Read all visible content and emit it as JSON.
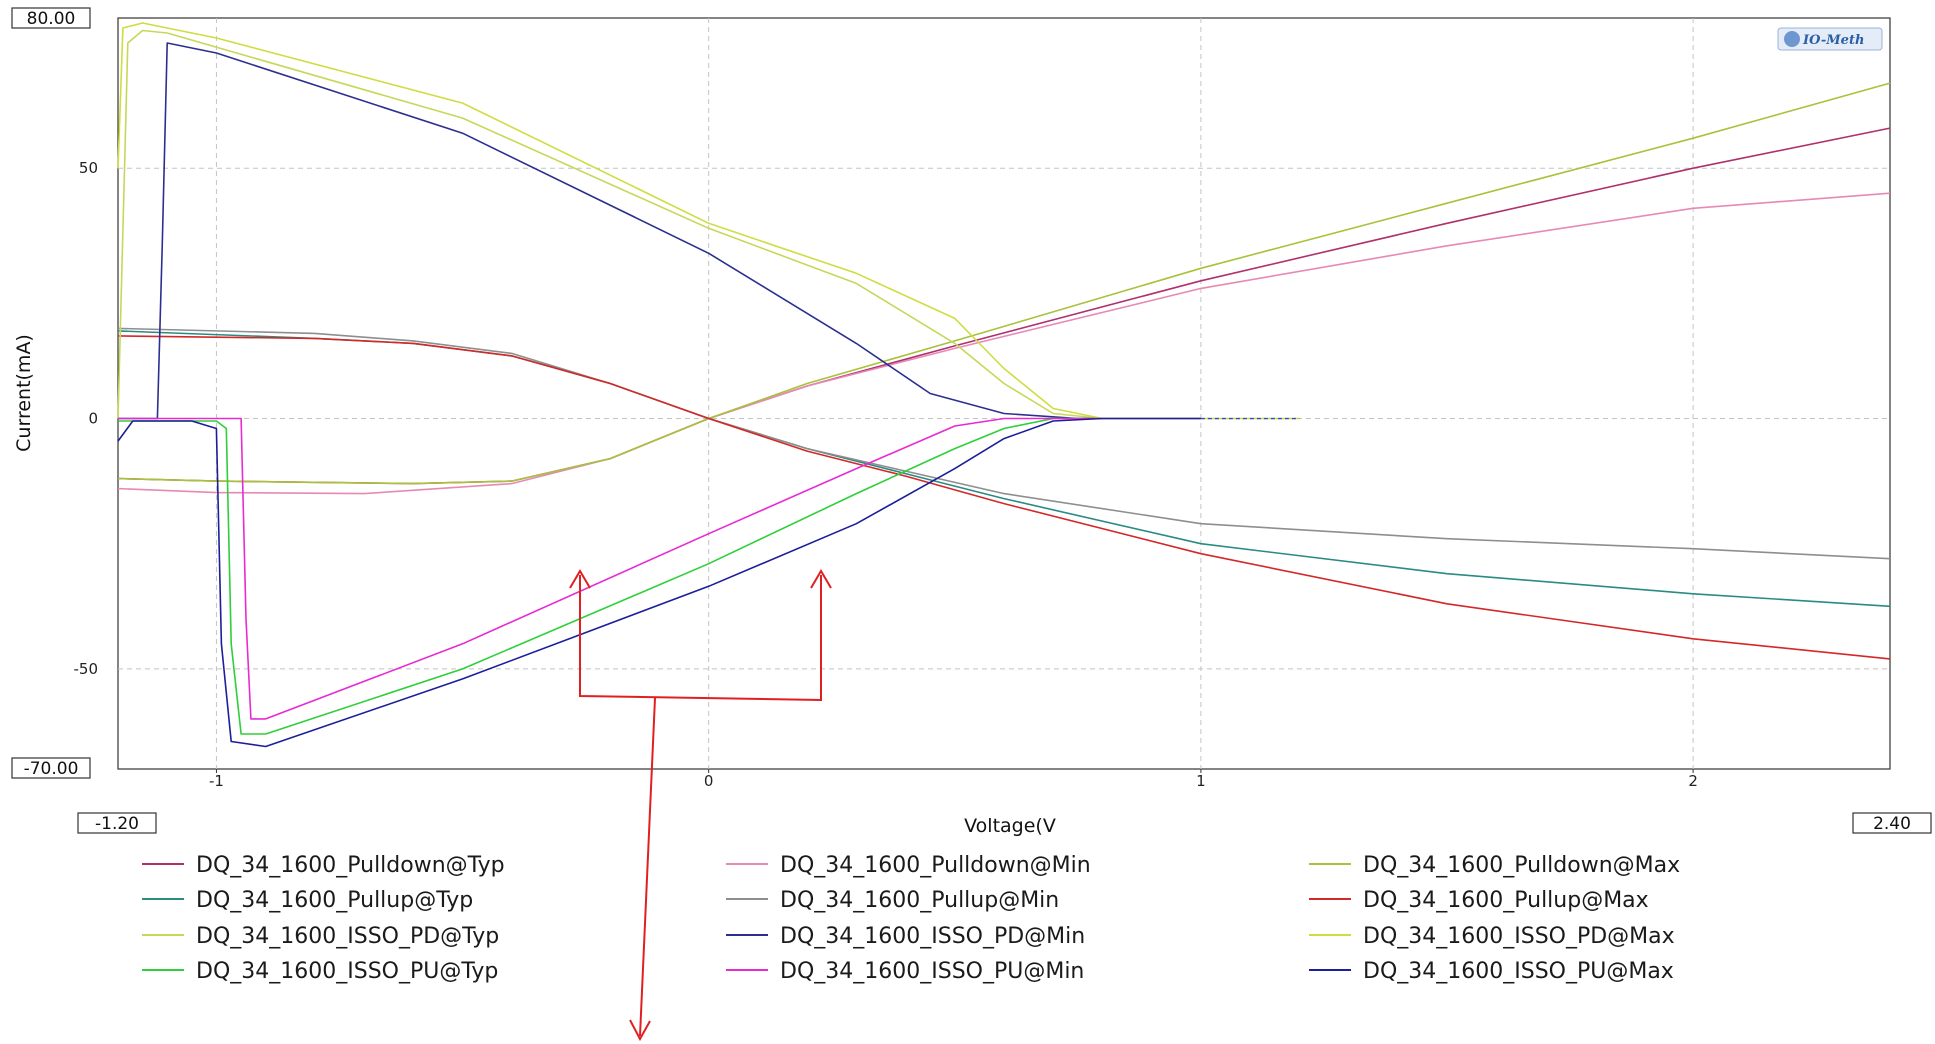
{
  "chart_data": {
    "type": "line",
    "title": "",
    "xlabel": "Voltage(V",
    "ylabel": "Current(mA)",
    "xlim": [
      -1.2,
      2.4
    ],
    "ylim": [
      -70,
      80
    ],
    "xlim_labels": [
      "-1.20",
      "2.40"
    ],
    "ylim_labels": [
      "80.00",
      "-70.00"
    ],
    "x_ticks": [
      -1,
      0,
      1,
      2
    ],
    "x_tick_labels": [
      "-1",
      "0",
      "1",
      "2"
    ],
    "y_ticks": [
      50,
      0,
      -50
    ],
    "y_tick_labels": [
      "50",
      "0",
      "-50"
    ],
    "grid": true,
    "legend_position": "bottom",
    "logo": "IO-Meth",
    "series": [
      {
        "name": "DQ_34_1600_Pulldown@Typ",
        "color": "#b0306f",
        "points": [
          [
            -1.2,
            -12
          ],
          [
            -1.0,
            -12.5
          ],
          [
            -0.6,
            -13
          ],
          [
            -0.4,
            -12.5
          ],
          [
            -0.2,
            -8
          ],
          [
            0,
            0
          ],
          [
            0.2,
            6.5
          ],
          [
            0.5,
            14.5
          ],
          [
            1,
            27.5
          ],
          [
            1.5,
            39
          ],
          [
            2,
            50
          ],
          [
            2.4,
            58
          ]
        ]
      },
      {
        "name": "DQ_34_1600_Pulldown@Min",
        "color": "#e68ab5",
        "points": [
          [
            -1.2,
            -14
          ],
          [
            -1.0,
            -14.8
          ],
          [
            -0.7,
            -15
          ],
          [
            -0.4,
            -13
          ],
          [
            -0.2,
            -8
          ],
          [
            0,
            0
          ],
          [
            0.2,
            6.5
          ],
          [
            0.5,
            14
          ],
          [
            1,
            26
          ],
          [
            1.5,
            34.5
          ],
          [
            2,
            42
          ],
          [
            2.4,
            45
          ]
        ]
      },
      {
        "name": "DQ_34_1600_Pulldown@Max",
        "color": "#a8c23a",
        "points": [
          [
            -1.2,
            -12
          ],
          [
            -1.0,
            -12.5
          ],
          [
            -0.6,
            -13
          ],
          [
            -0.4,
            -12.5
          ],
          [
            -0.2,
            -8
          ],
          [
            0,
            0
          ],
          [
            0.2,
            7
          ],
          [
            0.5,
            15.5
          ],
          [
            1,
            30
          ],
          [
            1.5,
            43
          ],
          [
            2,
            56
          ],
          [
            2.4,
            67
          ]
        ]
      },
      {
        "name": "DQ_34_1600_Pullup@Typ",
        "color": "#2a8a84",
        "points": [
          [
            -1.2,
            17.5
          ],
          [
            -0.8,
            16
          ],
          [
            -0.6,
            15
          ],
          [
            -0.4,
            12.5
          ],
          [
            -0.2,
            7
          ],
          [
            0,
            0
          ],
          [
            0.2,
            -6
          ],
          [
            0.4,
            -11
          ],
          [
            0.6,
            -16
          ],
          [
            1,
            -25
          ],
          [
            1.5,
            -31
          ],
          [
            2,
            -35
          ],
          [
            2.4,
            -37.5
          ]
        ]
      },
      {
        "name": "DQ_34_1600_Pullup@Min",
        "color": "#8e8e8e",
        "points": [
          [
            -1.2,
            18
          ],
          [
            -0.8,
            17
          ],
          [
            -0.6,
            15.5
          ],
          [
            -0.4,
            13
          ],
          [
            -0.2,
            7
          ],
          [
            0,
            0
          ],
          [
            0.2,
            -6
          ],
          [
            0.4,
            -10.5
          ],
          [
            0.6,
            -15
          ],
          [
            1,
            -21
          ],
          [
            1.5,
            -24
          ],
          [
            2,
            -26
          ],
          [
            2.4,
            -28
          ]
        ]
      },
      {
        "name": "DQ_34_1600_Pullup@Max",
        "color": "#d42828",
        "points": [
          [
            -1.2,
            16.5
          ],
          [
            -0.8,
            16
          ],
          [
            -0.6,
            15
          ],
          [
            -0.4,
            12.5
          ],
          [
            -0.2,
            7
          ],
          [
            0,
            0
          ],
          [
            0.2,
            -6.5
          ],
          [
            0.4,
            -11.5
          ],
          [
            0.6,
            -17
          ],
          [
            1,
            -27
          ],
          [
            1.5,
            -37
          ],
          [
            2,
            -44
          ],
          [
            2.4,
            -48
          ]
        ]
      },
      {
        "name": "DQ_34_1600_ISSO_PD@Typ",
        "color": "#c7d75a",
        "points": [
          [
            -1.2,
            0
          ],
          [
            -1.18,
            75
          ],
          [
            -1.15,
            77.5
          ],
          [
            -1.1,
            77
          ],
          [
            -0.5,
            60
          ],
          [
            0,
            38
          ],
          [
            0.3,
            27
          ],
          [
            0.5,
            15
          ],
          [
            0.6,
            7
          ],
          [
            0.7,
            1
          ],
          [
            0.8,
            0
          ],
          [
            1,
            0
          ]
        ]
      },
      {
        "name": "DQ_34_1600_ISSO_PD@Min",
        "color": "#2b2f8f",
        "points": [
          [
            -1.2,
            0
          ],
          [
            -1.12,
            0
          ],
          [
            -1.11,
            35
          ],
          [
            -1.1,
            75
          ],
          [
            -1.0,
            73
          ],
          [
            -0.5,
            57
          ],
          [
            0,
            33
          ],
          [
            0.3,
            15
          ],
          [
            0.45,
            5
          ],
          [
            0.6,
            1
          ],
          [
            0.75,
            0
          ],
          [
            1,
            0
          ]
        ]
      },
      {
        "name": "DQ_34_1600_ISSO_PD@Max",
        "color": "#d0dc40",
        "points": [
          [
            -1.2,
            50
          ],
          [
            -1.19,
            78
          ],
          [
            -1.15,
            79
          ],
          [
            -1.0,
            76
          ],
          [
            -0.5,
            63
          ],
          [
            0,
            39
          ],
          [
            0.3,
            29
          ],
          [
            0.5,
            20
          ],
          [
            0.6,
            10
          ],
          [
            0.7,
            2
          ],
          [
            0.8,
            0
          ],
          [
            1,
            0
          ],
          [
            1.2,
            0
          ]
        ]
      },
      {
        "name": "DQ_34_1600_ISSO_PU@Typ",
        "color": "#2ecf3a",
        "points": [
          [
            -1.2,
            -0.5
          ],
          [
            -1.0,
            -0.5
          ],
          [
            -0.98,
            -2
          ],
          [
            -0.97,
            -45
          ],
          [
            -0.95,
            -63
          ],
          [
            -0.9,
            -63
          ],
          [
            -0.5,
            -50
          ],
          [
            0,
            -29
          ],
          [
            0.3,
            -15
          ],
          [
            0.5,
            -6
          ],
          [
            0.6,
            -2
          ],
          [
            0.7,
            0
          ],
          [
            0.8,
            0
          ]
        ]
      },
      {
        "name": "DQ_34_1600_ISSO_PU@Min",
        "color": "#e82ad2",
        "points": [
          [
            -1.2,
            0
          ],
          [
            -0.95,
            0
          ],
          [
            -0.94,
            -40
          ],
          [
            -0.93,
            -60
          ],
          [
            -0.9,
            -60
          ],
          [
            -0.5,
            -45
          ],
          [
            0,
            -23
          ],
          [
            0.3,
            -10
          ],
          [
            0.5,
            -1.5
          ],
          [
            0.6,
            0
          ],
          [
            0.8,
            0
          ]
        ]
      },
      {
        "name": "DQ_34_1600_ISSO_PU@Max",
        "color": "#1c1e9a",
        "points": [
          [
            -1.2,
            -4.5
          ],
          [
            -1.17,
            -0.5
          ],
          [
            -1.05,
            -0.5
          ],
          [
            -1.0,
            -2
          ],
          [
            -0.99,
            -45
          ],
          [
            -0.97,
            -64.5
          ],
          [
            -0.9,
            -65.5
          ],
          [
            -0.5,
            -52
          ],
          [
            0,
            -33.5
          ],
          [
            0.3,
            -21
          ],
          [
            0.5,
            -10
          ],
          [
            0.6,
            -4
          ],
          [
            0.7,
            -0.5
          ],
          [
            0.8,
            0
          ],
          [
            1,
            0
          ]
        ]
      }
    ]
  }
}
